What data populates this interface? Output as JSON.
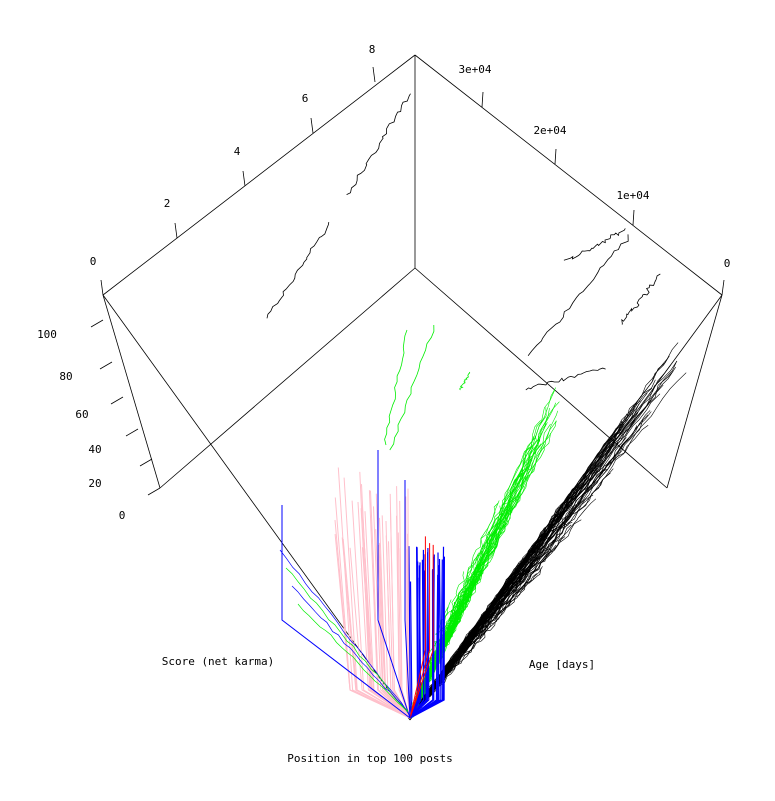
{
  "chart_data": {
    "type": "line",
    "subtype": "3d-trajectories",
    "title": "",
    "xlabel": "Score (net karma)",
    "ylabel": "Age [days]",
    "zlabel": "Position in top 100 posts",
    "axes": {
      "score": {
        "ticks": [
          "0",
          "2",
          "4",
          "6",
          "8"
        ],
        "range": [
          0,
          8.5
        ]
      },
      "age": {
        "ticks": [
          "0",
          "1e+04",
          "2e+04",
          "3e+04"
        ],
        "range": [
          0,
          32000
        ]
      },
      "position": {
        "ticks": [
          "0",
          "20",
          "40",
          "60",
          "80",
          "100"
        ],
        "range": [
          0,
          100
        ]
      }
    },
    "grid": false,
    "legend": "none",
    "series": [
      {
        "color": "#ffc0cb",
        "count": 40
      },
      {
        "color": "#0000ff",
        "count": 30
      },
      {
        "color": "#ff0000",
        "count": 3
      },
      {
        "color": "#00ee00",
        "count": 60
      },
      {
        "color": "#000000",
        "count": 70
      }
    ]
  }
}
